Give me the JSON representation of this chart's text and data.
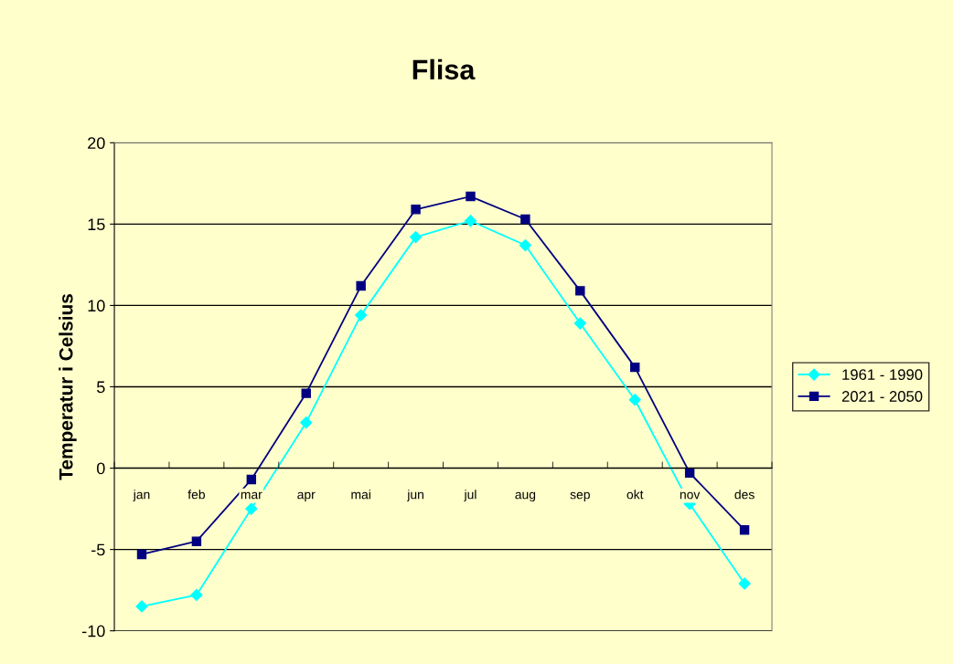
{
  "chart_data": {
    "type": "line",
    "title": "Flisa",
    "ylabel": "Temperatur i Celsius",
    "categories": [
      "jan",
      "feb",
      "mar",
      "apr",
      "mai",
      "jun",
      "jul",
      "aug",
      "sep",
      "okt",
      "nov",
      "des"
    ],
    "series": [
      {
        "name": "1961 - 1990",
        "color": "#00ffff",
        "marker": "diamond",
        "values": [
          -8.5,
          -7.8,
          -2.5,
          2.8,
          9.4,
          14.2,
          15.2,
          13.7,
          8.9,
          4.2,
          -2.2,
          -7.1
        ]
      },
      {
        "name": "2021 - 2050",
        "color": "#000080",
        "marker": "square",
        "values": [
          -5.3,
          -4.5,
          -0.7,
          4.6,
          11.2,
          15.9,
          16.7,
          15.3,
          10.9,
          6.2,
          -0.3,
          -3.8
        ]
      }
    ],
    "ylim": [
      -10,
      20
    ],
    "yticks": [
      -10,
      -5,
      0,
      5,
      10,
      15,
      20
    ],
    "grid": "y",
    "legend": "right",
    "line_style": "solid"
  }
}
